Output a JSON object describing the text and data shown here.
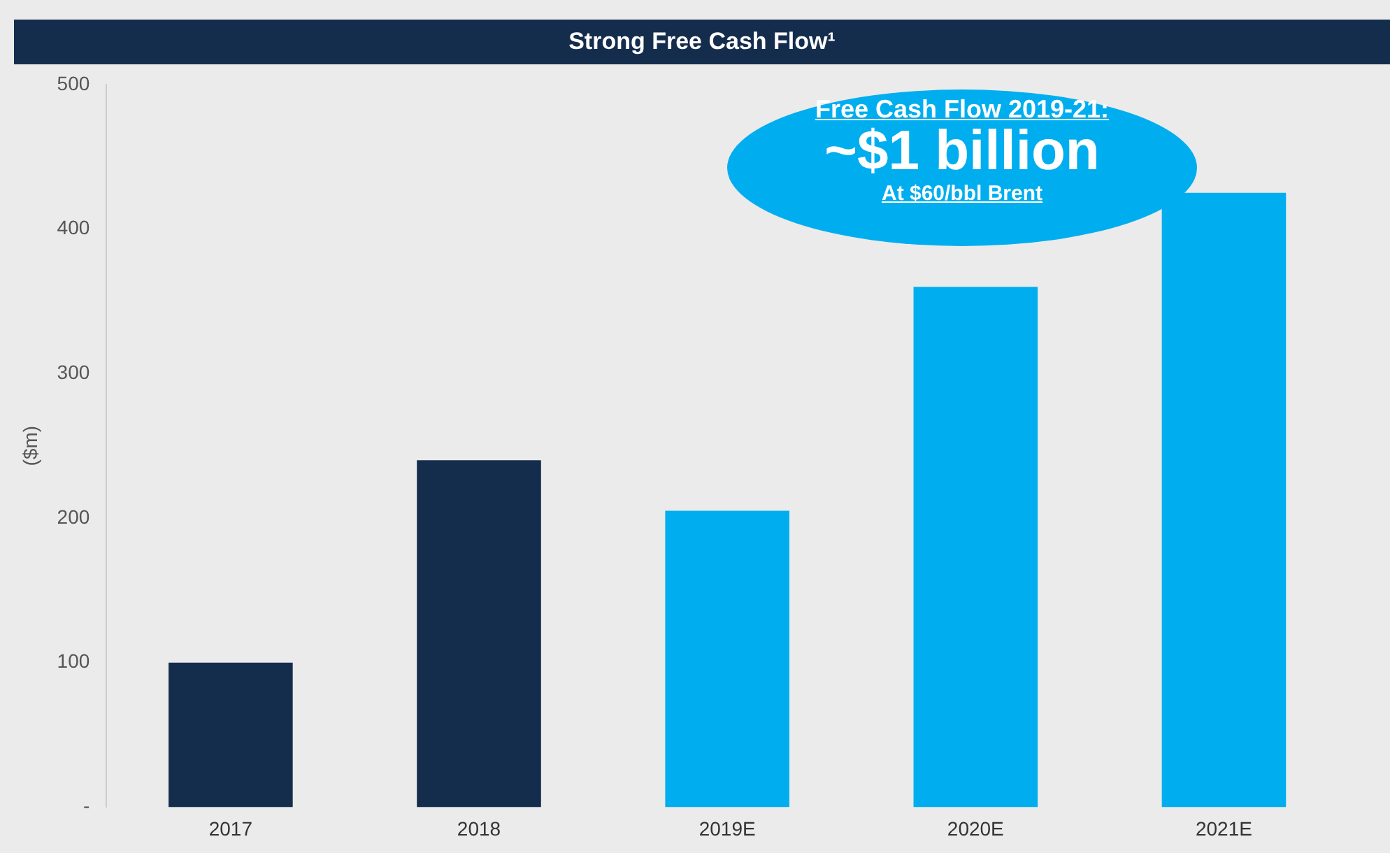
{
  "chart_data": {
    "type": "bar",
    "title": "Strong Free Cash Flow¹",
    "ylabel": "($m)",
    "categories": [
      "2017",
      "2018",
      "2019E",
      "2020E",
      "2021E"
    ],
    "values": [
      100,
      240,
      205,
      360,
      425
    ],
    "colors": [
      "#152d4d",
      "#152d4d",
      "#00aeef",
      "#00aeef",
      "#00aeef"
    ],
    "ylim": [
      0,
      500
    ],
    "yticks": [
      {
        "value": 0,
        "label": "-"
      },
      100,
      200,
      300,
      400,
      500
    ],
    "grid": false,
    "legend": false,
    "annotations": [
      "Free Cash Flow 2019-21:",
      "~$1 billion",
      "At $60/bbl Brent"
    ]
  }
}
